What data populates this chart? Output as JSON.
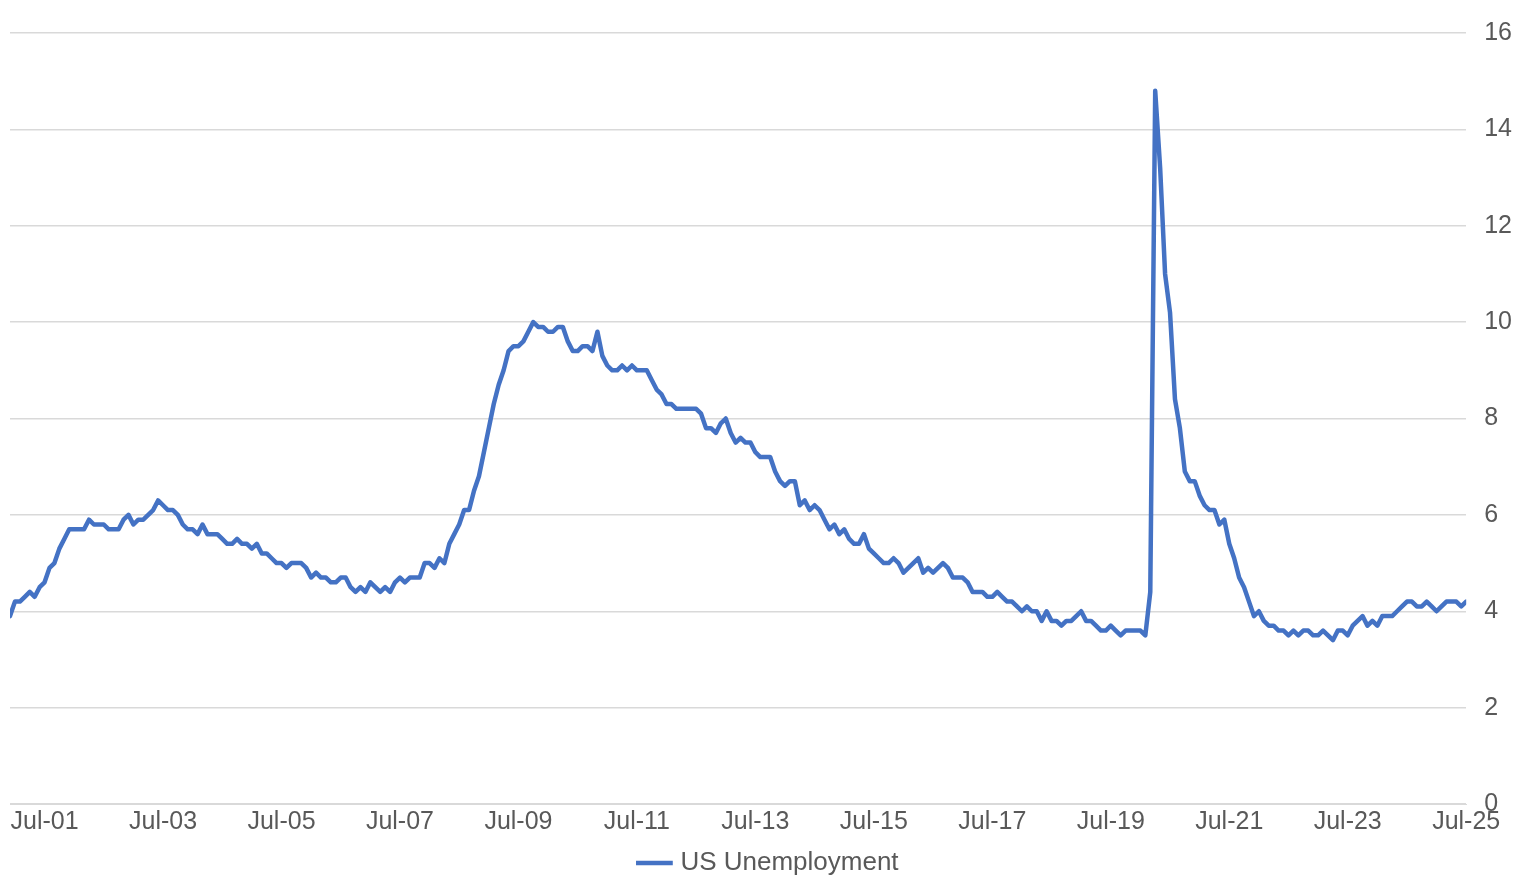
{
  "chart_data": {
    "type": "line",
    "x": [
      "2000-12",
      "2001-01",
      "2001-02",
      "2001-03",
      "2001-04",
      "2001-05",
      "2001-06",
      "2001-07",
      "2001-08",
      "2001-09",
      "2001-10",
      "2001-11",
      "2001-12",
      "2002-01",
      "2002-02",
      "2002-03",
      "2002-04",
      "2002-05",
      "2002-06",
      "2002-07",
      "2002-08",
      "2002-09",
      "2002-10",
      "2002-11",
      "2002-12",
      "2003-01",
      "2003-02",
      "2003-03",
      "2003-04",
      "2003-05",
      "2003-06",
      "2003-07",
      "2003-08",
      "2003-09",
      "2003-10",
      "2003-11",
      "2003-12",
      "2004-01",
      "2004-02",
      "2004-03",
      "2004-04",
      "2004-05",
      "2004-06",
      "2004-07",
      "2004-08",
      "2004-09",
      "2004-10",
      "2004-11",
      "2004-12",
      "2005-01",
      "2005-02",
      "2005-03",
      "2005-04",
      "2005-05",
      "2005-06",
      "2005-07",
      "2005-08",
      "2005-09",
      "2005-10",
      "2005-11",
      "2005-12",
      "2006-01",
      "2006-02",
      "2006-03",
      "2006-04",
      "2006-05",
      "2006-06",
      "2006-07",
      "2006-08",
      "2006-09",
      "2006-10",
      "2006-11",
      "2006-12",
      "2007-01",
      "2007-02",
      "2007-03",
      "2007-04",
      "2007-05",
      "2007-06",
      "2007-07",
      "2007-08",
      "2007-09",
      "2007-10",
      "2007-11",
      "2007-12",
      "2008-01",
      "2008-02",
      "2008-03",
      "2008-04",
      "2008-05",
      "2008-06",
      "2008-07",
      "2008-08",
      "2008-09",
      "2008-10",
      "2008-11",
      "2008-12",
      "2009-01",
      "2009-02",
      "2009-03",
      "2009-04",
      "2009-05",
      "2009-06",
      "2009-07",
      "2009-08",
      "2009-09",
      "2009-10",
      "2009-11",
      "2009-12",
      "2010-01",
      "2010-02",
      "2010-03",
      "2010-04",
      "2010-05",
      "2010-06",
      "2010-07",
      "2010-08",
      "2010-09",
      "2010-10",
      "2010-11",
      "2010-12",
      "2011-01",
      "2011-02",
      "2011-03",
      "2011-04",
      "2011-05",
      "2011-06",
      "2011-07",
      "2011-08",
      "2011-09",
      "2011-10",
      "2011-11",
      "2011-12",
      "2012-01",
      "2012-02",
      "2012-03",
      "2012-04",
      "2012-05",
      "2012-06",
      "2012-07",
      "2012-08",
      "2012-09",
      "2012-10",
      "2012-11",
      "2012-12",
      "2013-01",
      "2013-02",
      "2013-03",
      "2013-04",
      "2013-05",
      "2013-06",
      "2013-07",
      "2013-08",
      "2013-09",
      "2013-10",
      "2013-11",
      "2013-12",
      "2014-01",
      "2014-02",
      "2014-03",
      "2014-04",
      "2014-05",
      "2014-06",
      "2014-07",
      "2014-08",
      "2014-09",
      "2014-10",
      "2014-11",
      "2014-12",
      "2015-01",
      "2015-02",
      "2015-03",
      "2015-04",
      "2015-05",
      "2015-06",
      "2015-07",
      "2015-08",
      "2015-09",
      "2015-10",
      "2015-11",
      "2015-12",
      "2016-01",
      "2016-02",
      "2016-03",
      "2016-04",
      "2016-05",
      "2016-06",
      "2016-07",
      "2016-08",
      "2016-09",
      "2016-10",
      "2016-11",
      "2016-12",
      "2017-01",
      "2017-02",
      "2017-03",
      "2017-04",
      "2017-05",
      "2017-06",
      "2017-07",
      "2017-08",
      "2017-09",
      "2017-10",
      "2017-11",
      "2017-12",
      "2018-01",
      "2018-02",
      "2018-03",
      "2018-04",
      "2018-05",
      "2018-06",
      "2018-07",
      "2018-08",
      "2018-09",
      "2018-10",
      "2018-11",
      "2018-12",
      "2019-01",
      "2019-02",
      "2019-03",
      "2019-04",
      "2019-05",
      "2019-06",
      "2019-07",
      "2019-08",
      "2019-09",
      "2019-10",
      "2019-11",
      "2019-12",
      "2020-01",
      "2020-02",
      "2020-03",
      "2020-04",
      "2020-05",
      "2020-06",
      "2020-07",
      "2020-08",
      "2020-09",
      "2020-10",
      "2020-11",
      "2020-12",
      "2021-01",
      "2021-02",
      "2021-03",
      "2021-04",
      "2021-05",
      "2021-06",
      "2021-07",
      "2021-08",
      "2021-09",
      "2021-10",
      "2021-11",
      "2021-12",
      "2022-01",
      "2022-02",
      "2022-03",
      "2022-04",
      "2022-05",
      "2022-06",
      "2022-07",
      "2022-08",
      "2022-09",
      "2022-10",
      "2022-11",
      "2022-12",
      "2023-01",
      "2023-02",
      "2023-03",
      "2023-04",
      "2023-05",
      "2023-06",
      "2023-07",
      "2023-08",
      "2023-09",
      "2023-10",
      "2023-11",
      "2023-12",
      "2024-01",
      "2024-02",
      "2024-03",
      "2024-04",
      "2024-05",
      "2024-06",
      "2024-07",
      "2024-08",
      "2024-09",
      "2024-10",
      "2024-11",
      "2024-12",
      "2025-01",
      "2025-02",
      "2025-03",
      "2025-04",
      "2025-05",
      "2025-06",
      "2025-07"
    ],
    "series": [
      {
        "name": "US Unemployment",
        "color": "#4472c4",
        "values": [
          3.9,
          4.2,
          4.2,
          4.3,
          4.4,
          4.3,
          4.5,
          4.6,
          4.9,
          5.0,
          5.3,
          5.5,
          5.7,
          5.7,
          5.7,
          5.7,
          5.9,
          5.8,
          5.8,
          5.8,
          5.7,
          5.7,
          5.7,
          5.9,
          6.0,
          5.8,
          5.9,
          5.9,
          6.0,
          6.1,
          6.3,
          6.2,
          6.1,
          6.1,
          6.0,
          5.8,
          5.7,
          5.7,
          5.6,
          5.8,
          5.6,
          5.6,
          5.6,
          5.5,
          5.4,
          5.4,
          5.5,
          5.4,
          5.4,
          5.3,
          5.4,
          5.2,
          5.2,
          5.1,
          5.0,
          5.0,
          4.9,
          5.0,
          5.0,
          5.0,
          4.9,
          4.7,
          4.8,
          4.7,
          4.7,
          4.6,
          4.6,
          4.7,
          4.7,
          4.5,
          4.4,
          4.5,
          4.4,
          4.6,
          4.5,
          4.4,
          4.5,
          4.4,
          4.6,
          4.7,
          4.6,
          4.7,
          4.7,
          4.7,
          5.0,
          5.0,
          4.9,
          5.1,
          5.0,
          5.4,
          5.6,
          5.8,
          6.1,
          6.1,
          6.5,
          6.8,
          7.3,
          7.8,
          8.3,
          8.7,
          9.0,
          9.4,
          9.5,
          9.5,
          9.6,
          9.8,
          10.0,
          9.9,
          9.9,
          9.8,
          9.8,
          9.9,
          9.9,
          9.6,
          9.4,
          9.4,
          9.5,
          9.5,
          9.4,
          9.8,
          9.3,
          9.1,
          9.0,
          9.0,
          9.1,
          9.0,
          9.1,
          9.0,
          9.0,
          9.0,
          8.8,
          8.6,
          8.5,
          8.3,
          8.3,
          8.2,
          8.2,
          8.2,
          8.2,
          8.2,
          8.1,
          7.8,
          7.8,
          7.7,
          7.9,
          8.0,
          7.7,
          7.5,
          7.6,
          7.5,
          7.5,
          7.3,
          7.2,
          7.2,
          7.2,
          6.9,
          6.7,
          6.6,
          6.7,
          6.7,
          6.2,
          6.3,
          6.1,
          6.2,
          6.1,
          5.9,
          5.7,
          5.8,
          5.6,
          5.7,
          5.5,
          5.4,
          5.4,
          5.6,
          5.3,
          5.2,
          5.1,
          5.0,
          5.0,
          5.1,
          5.0,
          4.8,
          4.9,
          5.0,
          5.1,
          4.8,
          4.9,
          4.8,
          4.9,
          5.0,
          4.9,
          4.7,
          4.7,
          4.7,
          4.6,
          4.4,
          4.4,
          4.4,
          4.3,
          4.3,
          4.4,
          4.3,
          4.2,
          4.2,
          4.1,
          4.0,
          4.1,
          4.0,
          4.0,
          3.8,
          4.0,
          3.8,
          3.8,
          3.7,
          3.8,
          3.8,
          3.9,
          4.0,
          3.8,
          3.8,
          3.7,
          3.6,
          3.6,
          3.7,
          3.6,
          3.5,
          3.6,
          3.6,
          3.6,
          3.6,
          3.5,
          4.4,
          14.8,
          13.2,
          11.0,
          10.2,
          8.4,
          7.8,
          6.9,
          6.7,
          6.7,
          6.4,
          6.2,
          6.1,
          6.1,
          5.8,
          5.9,
          5.4,
          5.1,
          4.7,
          4.5,
          4.2,
          3.9,
          4.0,
          3.8,
          3.7,
          3.7,
          3.6,
          3.6,
          3.5,
          3.6,
          3.5,
          3.6,
          3.6,
          3.5,
          3.5,
          3.6,
          3.5,
          3.4,
          3.6,
          3.6,
          3.5,
          3.7,
          3.8,
          3.9,
          3.7,
          3.8,
          3.7,
          3.9,
          3.9,
          3.9,
          4.0,
          4.1,
          4.2,
          4.2,
          4.1,
          4.1,
          4.2,
          4.1,
          4.0,
          4.1,
          4.2,
          4.2,
          4.2,
          4.1,
          4.2
        ]
      }
    ],
    "xlim": [
      "2000-12",
      "2025-07"
    ],
    "xticks": [
      {
        "value": "2001-07",
        "label": "Jul-01"
      },
      {
        "value": "2003-07",
        "label": "Jul-03"
      },
      {
        "value": "2005-07",
        "label": "Jul-05"
      },
      {
        "value": "2007-07",
        "label": "Jul-07"
      },
      {
        "value": "2009-07",
        "label": "Jul-09"
      },
      {
        "value": "2011-07",
        "label": "Jul-11"
      },
      {
        "value": "2013-07",
        "label": "Jul-13"
      },
      {
        "value": "2015-07",
        "label": "Jul-15"
      },
      {
        "value": "2017-07",
        "label": "Jul-17"
      },
      {
        "value": "2019-07",
        "label": "Jul-19"
      },
      {
        "value": "2021-07",
        "label": "Jul-21"
      },
      {
        "value": "2023-07",
        "label": "Jul-23"
      },
      {
        "value": "2025-07",
        "label": "Jul-25"
      }
    ],
    "ylim": [
      0,
      16
    ],
    "yticks": [
      0,
      2,
      4,
      6,
      8,
      10,
      12,
      14,
      16
    ],
    "grid": "y",
    "legend": "bottom",
    "marker": "none",
    "line_style": "solid"
  }
}
